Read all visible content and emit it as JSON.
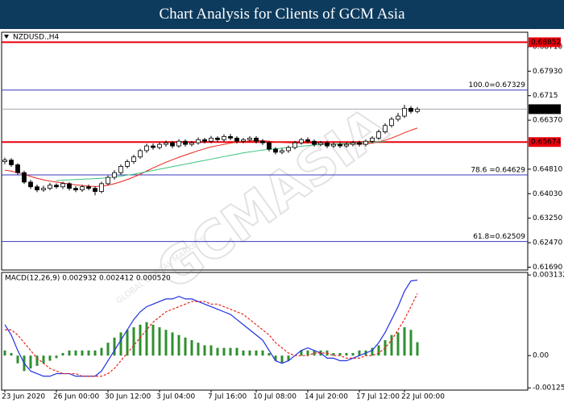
{
  "page_title": "Chart Analysis for Clients of GCM Asia",
  "watermark": {
    "brand": "GCMASIA",
    "tagline": "GLOBAL CAPITAL MARKETS"
  },
  "chart_data": [
    {
      "type": "candlestick",
      "title": "NZDUSD.,H4",
      "ylim": [
        0.616,
        0.6917
      ],
      "yticks": [
        {
          "value": 0.6871,
          "label": "0.68710"
        },
        {
          "value": 0.6793,
          "label": "0.67930"
        },
        0.6715,
        {
          "value": 0.6637,
          "label": "0.66370"
        },
        {
          "value": 0.6481,
          "label": "0.64810"
        },
        {
          "value": 0.6403,
          "label": "0.64030"
        },
        {
          "value": 0.6325,
          "label": "0.63250"
        },
        {
          "value": 0.6247,
          "label": "0.62470"
        },
        {
          "value": 0.6169,
          "label": "0.61690"
        }
      ],
      "bull_color": "#ffffff",
      "bear_color": "#000000",
      "outline_color": "#000000",
      "ohlc": [
        [
          0.6505,
          0.6518,
          0.6497,
          0.651
        ],
        [
          0.651,
          0.6516,
          0.6488,
          0.6495
        ],
        [
          0.6495,
          0.65,
          0.6462,
          0.647
        ],
        [
          0.647,
          0.6476,
          0.6434,
          0.644
        ],
        [
          0.644,
          0.6447,
          0.6418,
          0.6425
        ],
        [
          0.6425,
          0.6432,
          0.6408,
          0.6415
        ],
        [
          0.6415,
          0.6428,
          0.6409,
          0.642
        ],
        [
          0.642,
          0.6437,
          0.6414,
          0.643
        ],
        [
          0.643,
          0.6436,
          0.6419,
          0.6425
        ],
        [
          0.6425,
          0.6441,
          0.6418,
          0.6435
        ],
        [
          0.6435,
          0.644,
          0.6413,
          0.642
        ],
        [
          0.642,
          0.6427,
          0.6408,
          0.6415
        ],
        [
          0.6415,
          0.6431,
          0.6409,
          0.6425
        ],
        [
          0.6425,
          0.6432,
          0.6414,
          0.642
        ],
        [
          0.642,
          0.6426,
          0.6398,
          0.641
        ],
        [
          0.641,
          0.6441,
          0.6404,
          0.6435
        ],
        [
          0.6435,
          0.6461,
          0.6429,
          0.6455
        ],
        [
          0.6455,
          0.6478,
          0.6448,
          0.647
        ],
        [
          0.647,
          0.6496,
          0.6463,
          0.649
        ],
        [
          0.649,
          0.6512,
          0.6484,
          0.6505
        ],
        [
          0.6505,
          0.6527,
          0.6498,
          0.652
        ],
        [
          0.652,
          0.6546,
          0.6514,
          0.654
        ],
        [
          0.654,
          0.6562,
          0.6533,
          0.6555
        ],
        [
          0.6555,
          0.6563,
          0.6543,
          0.655
        ],
        [
          0.655,
          0.6567,
          0.6544,
          0.656
        ],
        [
          0.656,
          0.6572,
          0.6553,
          0.6565
        ],
        [
          0.6565,
          0.6571,
          0.6548,
          0.6555
        ],
        [
          0.6555,
          0.6577,
          0.6549,
          0.657
        ],
        [
          0.657,
          0.6576,
          0.6553,
          0.656
        ],
        [
          0.656,
          0.6571,
          0.6554,
          0.6565
        ],
        [
          0.6565,
          0.6582,
          0.6559,
          0.6575
        ],
        [
          0.6575,
          0.6581,
          0.6563,
          0.657
        ],
        [
          0.657,
          0.6587,
          0.6564,
          0.658
        ],
        [
          0.658,
          0.6586,
          0.6568,
          0.6575
        ],
        [
          0.6575,
          0.6592,
          0.6569,
          0.6585
        ],
        [
          0.6585,
          0.6593,
          0.6573,
          0.658
        ],
        [
          0.658,
          0.6586,
          0.6563,
          0.657
        ],
        [
          0.657,
          0.6581,
          0.6564,
          0.6575
        ],
        [
          0.6575,
          0.6586,
          0.6569,
          0.658
        ],
        [
          0.658,
          0.6586,
          0.6563,
          0.657
        ],
        [
          0.657,
          0.6577,
          0.6558,
          0.6565
        ],
        [
          0.6565,
          0.6571,
          0.6538,
          0.6545
        ],
        [
          0.6545,
          0.6551,
          0.6528,
          0.6535
        ],
        [
          0.6535,
          0.6547,
          0.6529,
          0.654
        ],
        [
          0.654,
          0.6556,
          0.6533,
          0.655
        ],
        [
          0.655,
          0.6571,
          0.6544,
          0.6565
        ],
        [
          0.6565,
          0.6581,
          0.6559,
          0.6575
        ],
        [
          0.6575,
          0.6582,
          0.6564,
          0.657
        ],
        [
          0.657,
          0.6576,
          0.6553,
          0.656
        ],
        [
          0.656,
          0.6571,
          0.6554,
          0.6565
        ],
        [
          0.6565,
          0.6571,
          0.6548,
          0.6555
        ],
        [
          0.6555,
          0.6567,
          0.6549,
          0.656
        ],
        [
          0.656,
          0.6566,
          0.6548,
          0.6555
        ],
        [
          0.6555,
          0.6566,
          0.6549,
          0.656
        ],
        [
          0.656,
          0.6571,
          0.6554,
          0.6565
        ],
        [
          0.6565,
          0.6572,
          0.6553,
          0.656
        ],
        [
          0.656,
          0.6576,
          0.6554,
          0.657
        ],
        [
          0.657,
          0.6586,
          0.6564,
          0.658
        ],
        [
          0.658,
          0.6607,
          0.6574,
          0.66
        ],
        [
          0.66,
          0.6627,
          0.6594,
          0.662
        ],
        [
          0.662,
          0.6647,
          0.6614,
          0.664
        ],
        [
          0.664,
          0.666,
          0.6633,
          0.665
        ],
        [
          0.665,
          0.6686,
          0.6644,
          0.6675
        ],
        [
          0.6675,
          0.6682,
          0.6658,
          0.6665
        ],
        [
          0.6665,
          0.6679,
          0.6659,
          0.6672
        ]
      ],
      "series": [
        {
          "color": "#e8231b",
          "values": [
            0.6478,
            0.6475,
            0.647,
            0.6465,
            0.6458,
            0.6452,
            0.6447,
            0.6443,
            0.644,
            0.6437,
            0.6434,
            0.6431,
            0.6429,
            0.6427,
            0.6426,
            0.6427,
            0.643,
            0.6435,
            0.6441,
            0.6448,
            0.6456,
            0.6465,
            0.6475,
            0.6485,
            0.6494,
            0.6503,
            0.6511,
            0.6519,
            0.6526,
            0.6533,
            0.654,
            0.6546,
            0.6552,
            0.6556,
            0.656,
            0.6564,
            0.6567,
            0.6569,
            0.6571,
            0.6572,
            0.6572,
            0.657,
            0.6568,
            0.6566,
            0.6565,
            0.6564,
            0.6564,
            0.6564,
            0.6564,
            0.6563,
            0.6562,
            0.6561,
            0.6561,
            0.6561,
            0.6561,
            0.6561,
            0.6562,
            0.6564,
            0.6568,
            0.6573,
            0.658,
            0.6588,
            0.6597,
            0.6605,
            0.6612
          ]
        },
        {
          "color": "#3cc47c",
          "values": [
            null,
            null,
            null,
            null,
            null,
            null,
            null,
            null,
            0.6445,
            0.6446,
            0.6447,
            0.6448,
            0.6449,
            0.645,
            0.6451,
            0.6452,
            0.6454,
            0.6456,
            0.6459,
            0.6462,
            0.6465,
            0.6469,
            0.6473,
            0.6477,
            0.6481,
            0.6485,
            0.6489,
            0.6493,
            0.6497,
            0.6501,
            0.6505,
            0.6509,
            0.6513,
            0.6517,
            0.6521,
            0.6525,
            0.6529,
            0.6533,
            0.6536,
            0.6539,
            0.6542,
            0.6544,
            0.6546,
            0.6548,
            0.655,
            0.6552,
            0.6554,
            0.6556,
            0.6558,
            0.6559,
            0.656,
            0.6561,
            0.6562,
            0.6563,
            0.6564,
            0.6565,
            0.6566,
            0.6567,
            0.6568,
            0.6569,
            null,
            null,
            null,
            null,
            null
          ]
        }
      ],
      "levels": [
        {
          "value": 0.68852,
          "color": "#e8000b",
          "tag_color": "#e8000b"
        },
        {
          "value": 0.67329,
          "label": "100.0=0.67329",
          "color": "#3838c0"
        },
        {
          "value": 0.66721,
          "color": "#a0a8b0",
          "tag_color": "#000000"
        },
        {
          "value": 0.65674,
          "color": "#e8000b",
          "tag_color": "#e8000b"
        },
        {
          "value": 0.64629,
          "label": "78.6 =0.64629",
          "color": "#3838c0"
        },
        {
          "value": 0.62509,
          "label": "61.8=0.62509",
          "color": "#3838c0"
        }
      ]
    },
    {
      "type": "macd",
      "title": "MACD(12,26,9) 0.002932 0.002412 0.000520",
      "ylim": [
        -0.00134,
        0.00323
      ],
      "yticks": [
        0.003132,
        {
          "value": 0,
          "label": "0.00"
        },
        -0.001253
      ],
      "categories": [
        "23 Jun 2020",
        null,
        null,
        null,
        null,
        null,
        null,
        null,
        "26 Jun 00:00",
        null,
        null,
        null,
        null,
        null,
        null,
        null,
        "30 Jun 12:00",
        null,
        null,
        null,
        null,
        null,
        null,
        null,
        "3 Jul 04:00",
        null,
        null,
        null,
        null,
        null,
        null,
        null,
        "7 Jul 16:00",
        null,
        null,
        null,
        null,
        null,
        null,
        "10 Jul 08:00",
        null,
        null,
        null,
        null,
        null,
        null,
        null,
        "14 Jul 20:00",
        null,
        null,
        null,
        null,
        null,
        null,
        null,
        "17 Jul 12:00",
        null,
        null,
        null,
        null,
        null,
        null,
        "22 Jul 00:00",
        null,
        null
      ],
      "series": [
        {
          "style": "bar",
          "color": "#2f8f2f",
          "values": [
            0.0002,
            0.0001,
            -0.0003,
            -0.0006,
            -0.0005,
            -0.0004,
            -0.0003,
            -0.0002,
            -0.0001,
            0.0001,
            0.0002,
            0.0002,
            0.0002,
            0.0002,
            0.0002,
            0.0003,
            0.0005,
            0.0007,
            0.0009,
            0.001,
            0.0011,
            0.0012,
            0.0013,
            0.0012,
            0.0011,
            0.001,
            0.0009,
            0.0008,
            0.0007,
            0.0006,
            0.0005,
            0.0004,
            0.0004,
            0.0003,
            0.0003,
            0.0003,
            0.0003,
            0.0002,
            0.0002,
            0.0002,
            0.0002,
            0.0001,
            -0.0002,
            -0.0003,
            -0.0002,
            0,
            0.0002,
            0.0002,
            0.0002,
            0.0002,
            0.0002,
            0.0001,
            0.0001,
            0.0001,
            0.0001,
            0.0002,
            0.0002,
            0.0003,
            0.0004,
            0.0006,
            0.0008,
            0.0009,
            0.0011,
            0.001,
            0.00052
          ]
        },
        {
          "style": "line",
          "color": "#2030e0",
          "values": [
            0.0012,
            0.0008,
            0.0002,
            -0.0003,
            -0.0006,
            -0.0007,
            -0.0008,
            -0.0008,
            -0.0007,
            -0.0007,
            -0.0007,
            -0.0008,
            -0.0008,
            -0.0008,
            -0.0008,
            -0.0006,
            -0.0002,
            0.0002,
            0.0006,
            0.001,
            0.0014,
            0.0017,
            0.0019,
            0.002,
            0.0021,
            0.0022,
            0.0022,
            0.0023,
            0.0022,
            0.0022,
            0.0021,
            0.002,
            0.0019,
            0.0018,
            0.0017,
            0.0016,
            0.0014,
            0.0012,
            0.001,
            0.0008,
            0.0006,
            0.0002,
            -0.0002,
            -0.0003,
            -0.0002,
            0,
            0.0002,
            0.0003,
            0.0002,
            0.0001,
            -0.0001,
            -0.0001,
            -0.0002,
            -0.0002,
            -0.0001,
            0,
            0.0001,
            0.0002,
            0.0005,
            0.0009,
            0.0014,
            0.0019,
            0.0025,
            0.0029,
            0.002932
          ]
        },
        {
          "style": "dashed",
          "color": "#e8231b",
          "values": [
            0.001,
            0.001,
            0.0008,
            0.0005,
            0.0002,
            -0.0001,
            -0.0003,
            -0.0005,
            -0.0006,
            -0.0007,
            -0.0007,
            -0.0007,
            -0.0008,
            -0.0008,
            -0.0008,
            -0.0008,
            -0.0007,
            -0.0005,
            -0.0002,
            0.0001,
            0.0004,
            0.0007,
            0.001,
            0.0013,
            0.0015,
            0.0017,
            0.0018,
            0.0019,
            0.002,
            0.0021,
            0.0021,
            0.0021,
            0.002,
            0.002,
            0.0019,
            0.0018,
            0.0017,
            0.0016,
            0.0014,
            0.0012,
            0.001,
            0.0008,
            0.0005,
            0.0003,
            0.0001,
            0,
            0,
            0,
            0.0001,
            0.0001,
            0.0001,
            0,
            0,
            -0.0001,
            -0.0001,
            -0.0001,
            0,
            0,
            0.0001,
            0.0003,
            0.0006,
            0.001,
            0.0014,
            0.0019,
            0.002412
          ]
        }
      ]
    }
  ]
}
